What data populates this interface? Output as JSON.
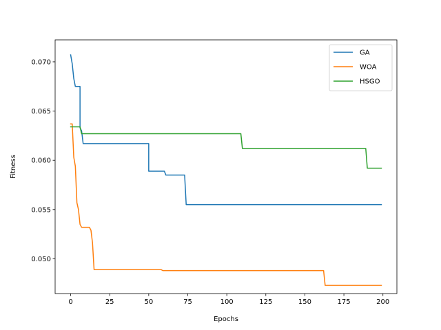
{
  "chart_data": {
    "type": "line",
    "title": "",
    "xlabel": "Epochs",
    "ylabel": "Fitness",
    "xlim": [
      -9.95,
      208.95
    ],
    "ylim": [
      0.04647,
      0.07223
    ],
    "xticks": [
      0,
      25,
      50,
      75,
      100,
      125,
      150,
      175,
      200
    ],
    "yticks": [
      0.05,
      0.055,
      0.06,
      0.065,
      0.07
    ],
    "ytick_labels": [
      "0.050",
      "0.055",
      "0.060",
      "0.065",
      "0.070"
    ],
    "grid": false,
    "legend_position": "top-right",
    "series": [
      {
        "name": "GA",
        "color": "#1f77b4",
        "points": [
          [
            0,
            0.0707
          ],
          [
            1,
            0.0698
          ],
          [
            2,
            0.0683
          ],
          [
            3,
            0.0675
          ],
          [
            6,
            0.0675
          ],
          [
            6,
            0.0633
          ],
          [
            7,
            0.063
          ],
          [
            8,
            0.0617
          ],
          [
            50,
            0.0617
          ],
          [
            50,
            0.0589
          ],
          [
            60,
            0.0589
          ],
          [
            61,
            0.0585
          ],
          [
            73,
            0.0585
          ],
          [
            74,
            0.0555
          ],
          [
            199,
            0.0555
          ]
        ]
      },
      {
        "name": "WOA",
        "color": "#ff7f0e",
        "points": [
          [
            0,
            0.0637
          ],
          [
            1,
            0.0637
          ],
          [
            2,
            0.0603
          ],
          [
            3,
            0.0594
          ],
          [
            4,
            0.0557
          ],
          [
            5,
            0.055
          ],
          [
            6,
            0.0535
          ],
          [
            7,
            0.0532
          ],
          [
            12,
            0.0532
          ],
          [
            13,
            0.0529
          ],
          [
            14,
            0.0516
          ],
          [
            15,
            0.0489
          ],
          [
            58,
            0.0489
          ],
          [
            59,
            0.0488
          ],
          [
            162,
            0.0488
          ],
          [
            163,
            0.0473
          ],
          [
            199,
            0.0473
          ]
        ]
      },
      {
        "name": "HSGO",
        "color": "#2ca02c",
        "points": [
          [
            0,
            0.0634
          ],
          [
            6,
            0.0634
          ],
          [
            7,
            0.0627
          ],
          [
            109,
            0.0627
          ],
          [
            110,
            0.0612
          ],
          [
            189,
            0.0612
          ],
          [
            190,
            0.0592
          ],
          [
            199,
            0.0592
          ]
        ]
      }
    ]
  }
}
